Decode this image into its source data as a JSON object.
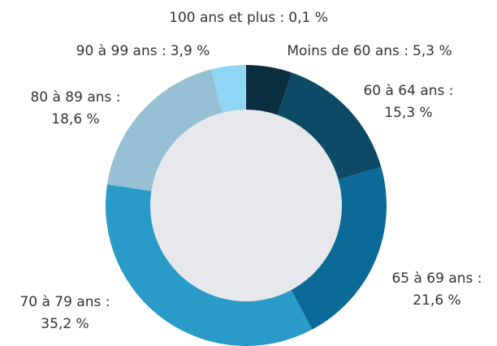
{
  "chart_data": {
    "type": "donut",
    "categories": [
      "Moins de 60 ans :",
      "60 à 64 ans :",
      "65 à 69 ans :",
      "70 à 79 ans :",
      "80 à 89 ans :",
      "90 à 99 ans :",
      "100 ans et plus :"
    ],
    "values": [
      5.3,
      15.3,
      21.6,
      35.2,
      18.6,
      3.9,
      0.1
    ],
    "value_labels": [
      "5,3 %",
      "15,3 %",
      "21,6 %",
      "35,2 %",
      "18,6 %",
      "3,9 %",
      "0,1 %"
    ],
    "colors": [
      "#0b2d40",
      "#0d4a66",
      "#0b6a98",
      "#2a9bc9",
      "#96c0d4",
      "#8fd6f5",
      "#a8dff7"
    ]
  }
}
